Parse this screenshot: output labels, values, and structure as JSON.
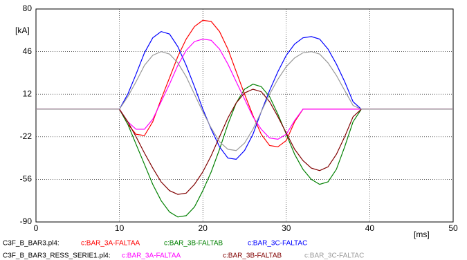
{
  "chart_data": {
    "type": "line",
    "xlabel": "[ms]",
    "ylabel": "[kA]",
    "xlim": [
      0,
      50
    ],
    "ylim": [
      -90,
      80
    ],
    "xticks": [
      0,
      10,
      20,
      30,
      40,
      50
    ],
    "yticks": [
      -90,
      -56,
      -22,
      12,
      46,
      80
    ],
    "grid": true,
    "files": [
      "C3F_B_BAR3.pl4:",
      "C3F_B_BAR3_RESS_SERIE1.pl4:"
    ],
    "x": [
      0,
      10,
      11,
      12,
      13,
      14,
      15,
      16,
      17,
      18,
      19,
      20,
      21,
      22,
      23,
      24,
      25,
      26,
      27,
      28,
      29,
      30,
      31,
      32,
      33,
      34,
      35,
      36,
      37,
      38,
      39,
      50
    ],
    "series": [
      {
        "name": "c:BAR_3A-FALTAA",
        "color": "#ff0000",
        "values": [
          0,
          0,
          -12,
          -20,
          -21,
          -10,
          8,
          25,
          42,
          56,
          66,
          71,
          70,
          62,
          48,
          30,
          12,
          -5,
          -20,
          -29,
          -30,
          -25,
          -10,
          0,
          0,
          0,
          0,
          0,
          0,
          0,
          0,
          0
        ]
      },
      {
        "name": "c:BAR_3B-FALTAB",
        "color": "#008000",
        "values": [
          0,
          0,
          -12,
          -28,
          -44,
          -60,
          -73,
          -82,
          -86,
          -85,
          -78,
          -65,
          -50,
          -32,
          -12,
          5,
          16,
          20,
          18,
          10,
          -4,
          -20,
          -36,
          -48,
          -56,
          -60,
          -58,
          -48,
          -30,
          -10,
          0,
          0
        ]
      },
      {
        "name": "c:BAR_3C-FALTAC",
        "color": "#0000ff",
        "values": [
          0,
          0,
          12,
          28,
          45,
          57,
          62,
          60,
          50,
          35,
          18,
          0,
          -16,
          -30,
          -39,
          -40,
          -33,
          -20,
          -2,
          15,
          30,
          43,
          52,
          57,
          58,
          56,
          48,
          36,
          22,
          6,
          0,
          0
        ]
      },
      {
        "name": "c:BAR_3A-FALTAA",
        "color": "#ff00ff",
        "values": [
          0,
          0,
          -10,
          -16,
          -16,
          -8,
          6,
          20,
          35,
          47,
          54,
          56,
          55,
          48,
          36,
          22,
          8,
          -6,
          -16,
          -23,
          -24,
          -20,
          -9,
          0,
          0,
          0,
          0,
          0,
          0,
          0,
          0,
          0
        ]
      },
      {
        "name": "c:BAR_3B-FALTAB",
        "color": "#800000",
        "values": [
          0,
          0,
          -10,
          -22,
          -35,
          -47,
          -58,
          -65,
          -68,
          -67,
          -60,
          -50,
          -37,
          -22,
          -7,
          5,
          13,
          16,
          14,
          6,
          -6,
          -19,
          -32,
          -41,
          -47,
          -49,
          -46,
          -36,
          -22,
          -6,
          0,
          0
        ]
      },
      {
        "name": "c:BAR_3C-FALTAC",
        "color": "#999999",
        "values": [
          0,
          0,
          10,
          22,
          35,
          43,
          46,
          44,
          37,
          26,
          12,
          -2,
          -15,
          -26,
          -32,
          -33,
          -27,
          -16,
          -2,
          12,
          24,
          34,
          41,
          45,
          46,
          44,
          37,
          27,
          15,
          3,
          0,
          0
        ]
      }
    ]
  }
}
